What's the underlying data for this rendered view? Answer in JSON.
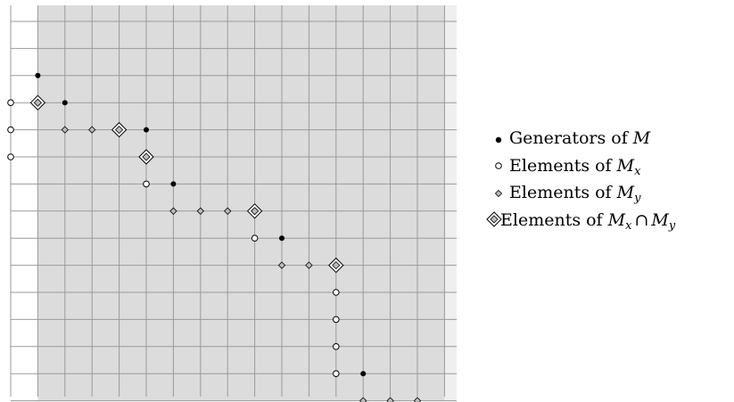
{
  "grid": {
    "cols": 16,
    "rows": 14
  },
  "generators": [
    [
      1,
      0
    ],
    [
      2,
      1
    ],
    [
      5,
      2
    ],
    [
      6,
      4
    ],
    [
      10,
      6
    ],
    [
      13,
      11
    ]
  ],
  "elements_mx": [
    [
      0,
      3
    ],
    [
      0,
      2
    ],
    [
      0,
      1
    ],
    [
      5,
      4
    ],
    [
      9,
      6
    ],
    [
      12,
      8
    ],
    [
      12,
      9
    ],
    [
      12,
      10
    ],
    [
      12,
      11
    ]
  ],
  "elements_my": [
    [
      2,
      2
    ],
    [
      3,
      2
    ],
    [
      6,
      5
    ],
    [
      7,
      5
    ],
    [
      8,
      5
    ],
    [
      10,
      7
    ],
    [
      11,
      7
    ],
    [
      13,
      12
    ],
    [
      14,
      12
    ],
    [
      15,
      12
    ]
  ],
  "elements_mx_my": [
    [
      1,
      1
    ],
    [
      4,
      2
    ],
    [
      5,
      3
    ],
    [
      9,
      5
    ],
    [
      12,
      7
    ]
  ],
  "colors": {
    "shade": "#dcdcdc",
    "grid": "#9a9a9a",
    "marker_fill": "#ffffff",
    "my_fill": "#bbbbbb",
    "ink": "#000000"
  },
  "legend": [
    {
      "symbol": "filled-dot",
      "text": "Generators of ",
      "math": "M",
      "sub": "",
      "tail": ""
    },
    {
      "symbol": "open-circle",
      "text": "Elements of ",
      "math": "M",
      "sub": "x",
      "tail": ""
    },
    {
      "symbol": "small-diamond",
      "text": "Elements of ",
      "math": "M",
      "sub": "y",
      "tail": ""
    },
    {
      "symbol": "double-diamond",
      "text": "Elements of ",
      "math": "M",
      "sub": "x",
      "tail": "M_y"
    }
  ],
  "intersection_symbol": "∩",
  "bullet": "•"
}
